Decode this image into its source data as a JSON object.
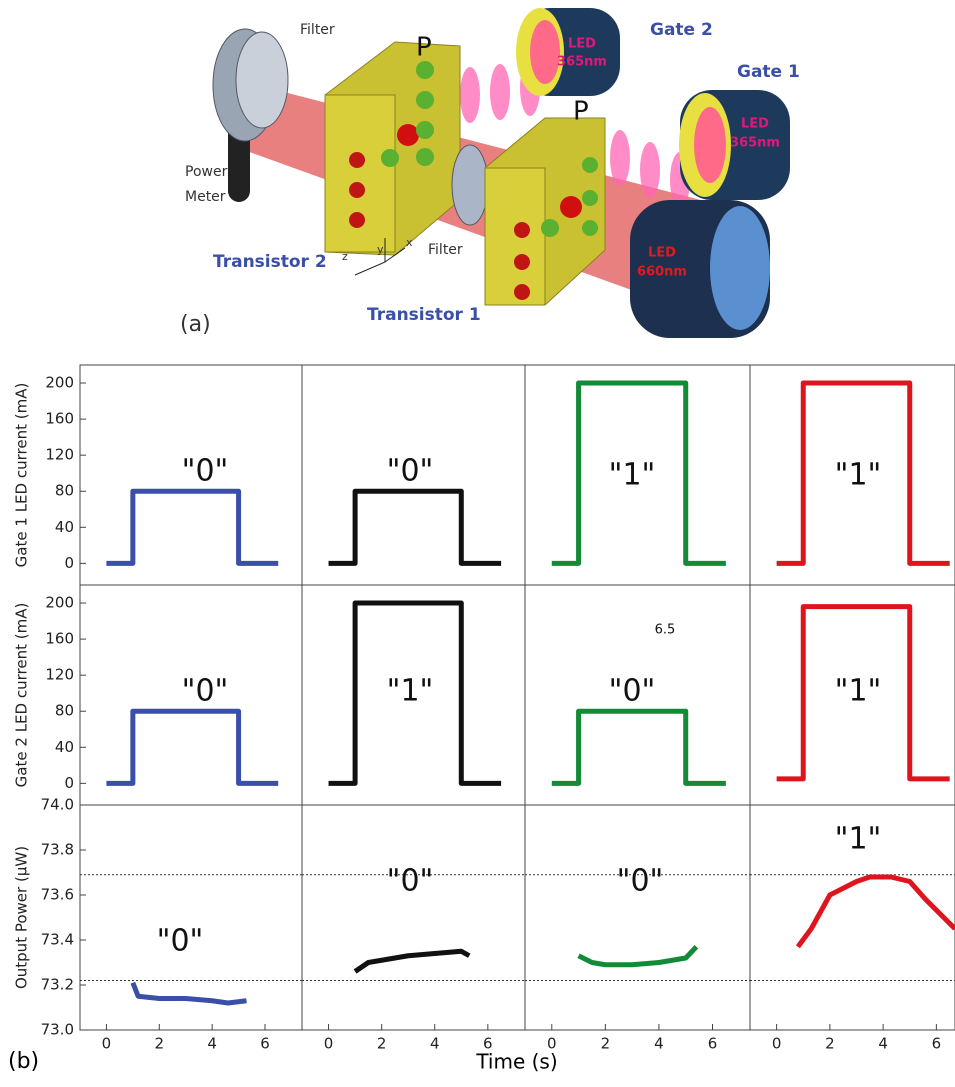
{
  "diagram": {
    "panel": "(a)",
    "filter_left": "Filter",
    "filter_right": "Filter",
    "power_meter_1": "Power",
    "power_meter_2": "Meter",
    "transistor_2": "Transistor 2",
    "transistor_1": "Transistor 1",
    "gate_1": "Gate 1",
    "gate_2": "Gate 2",
    "led_g2_1": "LED",
    "led_g2_2": "365nm",
    "led_g1_1": "LED",
    "led_g1_2": "365nm",
    "led_red_1": "LED",
    "led_red_2": "660nm",
    "polarization": "P",
    "axis_x": "x",
    "axis_y": "y",
    "axis_z": "z"
  },
  "figure": {
    "panel": "(b)",
    "xlabel": "Time (s)"
  },
  "chart_data": [
    {
      "type": "line",
      "ylabel": "Gate 1 LED current (mA)",
      "xlim": [
        -1,
        7.4
      ],
      "ylim": [
        -24,
        220
      ],
      "yticks": [
        0,
        40,
        80,
        120,
        160,
        200
      ],
      "x": [
        0,
        1,
        1,
        5,
        5,
        6.5
      ],
      "series": [
        {
          "color": "#3a4fa8",
          "values": [
            0,
            0,
            80,
            80,
            0,
            0
          ]
        }
      ],
      "annotations": [
        "\"0\""
      ]
    },
    {
      "type": "line",
      "xlim": [
        -1,
        7.4
      ],
      "ylim": [
        -24,
        220
      ],
      "x": [
        0,
        1,
        1,
        5,
        5,
        6.5
      ],
      "series": [
        {
          "color": "#111111",
          "values": [
            0,
            0,
            80,
            80,
            0,
            0
          ]
        }
      ],
      "annotations": [
        "\"0\""
      ]
    },
    {
      "type": "line",
      "xlim": [
        -1,
        7.4
      ],
      "ylim": [
        -24,
        220
      ],
      "x": [
        0,
        1,
        1,
        5,
        5,
        6.5
      ],
      "series": [
        {
          "color": "#138a36",
          "values": [
            0,
            0,
            200,
            200,
            0,
            0
          ]
        }
      ],
      "annotations": [
        "\"1\""
      ]
    },
    {
      "type": "line",
      "xlim": [
        -1,
        6.7
      ],
      "ylim": [
        -24,
        220
      ],
      "x": [
        0,
        1,
        1,
        5,
        5,
        6.5
      ],
      "series": [
        {
          "color": "#e0141c",
          "values": [
            0,
            0,
            200,
            200,
            0,
            0
          ]
        }
      ],
      "annotations": [
        "\"1\""
      ]
    },
    {
      "type": "line",
      "ylabel": "Gate 2 LED current (mA)",
      "xlim": [
        -1,
        7.4
      ],
      "ylim": [
        -24,
        220
      ],
      "yticks": [
        0,
        40,
        80,
        120,
        160,
        200
      ],
      "x": [
        0,
        1,
        1,
        5,
        5,
        6.5
      ],
      "series": [
        {
          "color": "#3a4fa8",
          "values": [
            0,
            0,
            80,
            80,
            0,
            0
          ]
        }
      ],
      "annotations": [
        "\"0\""
      ]
    },
    {
      "type": "line",
      "xlim": [
        -1,
        7.4
      ],
      "ylim": [
        -24,
        220
      ],
      "x": [
        0,
        1,
        1,
        5,
        5,
        6.5
      ],
      "series": [
        {
          "color": "#111111",
          "values": [
            0,
            0,
            200,
            200,
            0,
            0
          ]
        }
      ],
      "annotations": [
        "\"1\""
      ]
    },
    {
      "type": "line",
      "xlim": [
        -1,
        7.4
      ],
      "ylim": [
        -24,
        220
      ],
      "x": [
        0,
        1,
        1,
        5,
        5,
        6.5
      ],
      "series": [
        {
          "color": "#138a36",
          "values": [
            0,
            0,
            80,
            80,
            0,
            0
          ]
        }
      ],
      "annotations": [
        "\"0\"",
        "6.5"
      ]
    },
    {
      "type": "line",
      "xlim": [
        -1,
        6.7
      ],
      "ylim": [
        -24,
        220
      ],
      "x": [
        0,
        1,
        1,
        5,
        5,
        6.5
      ],
      "series": [
        {
          "color": "#e0141c",
          "values": [
            5,
            5,
            196,
            196,
            5,
            5
          ]
        }
      ],
      "annotations": [
        "\"1\""
      ]
    },
    {
      "type": "line",
      "ylabel": "Output Power (μW)",
      "xlim": [
        -1,
        7.4
      ],
      "ylim": [
        73.0,
        74.0
      ],
      "yticks": [
        {
          "value": 73.0,
          "label": "73.0"
        },
        73.2,
        73.4,
        73.6,
        73.8,
        {
          "value": 74.0,
          "label": "74.0"
        }
      ],
      "xticks": [
        0,
        2,
        4,
        6
      ],
      "reference_lines": [
        73.69,
        73.22
      ],
      "x": [
        1,
        1.2,
        2,
        3,
        4,
        4.6,
        5.3
      ],
      "series": [
        {
          "color": "#3a4fa8",
          "values": [
            73.21,
            73.15,
            73.14,
            73.14,
            73.13,
            73.12,
            73.13
          ]
        }
      ],
      "annotations": [
        "\"0\""
      ]
    },
    {
      "type": "line",
      "xlim": [
        -1,
        7.4
      ],
      "ylim": [
        73.0,
        74.0
      ],
      "xticks": [
        0,
        2,
        4,
        6
      ],
      "reference_lines": [
        73.69,
        73.22
      ],
      "x": [
        1,
        1.5,
        2,
        3,
        4,
        5,
        5.3
      ],
      "series": [
        {
          "color": "#111111",
          "values": [
            73.26,
            73.3,
            73.31,
            73.33,
            73.34,
            73.35,
            73.33
          ]
        }
      ],
      "annotations": [
        "\"0\""
      ]
    },
    {
      "type": "line",
      "xlim": [
        -1,
        7.4
      ],
      "ylim": [
        73.0,
        74.0
      ],
      "xticks": [
        0,
        2,
        4,
        6
      ],
      "reference_lines": [
        73.69,
        73.22
      ],
      "x": [
        1,
        1.5,
        2,
        3,
        4,
        5,
        5.4
      ],
      "series": [
        {
          "color": "#138a36",
          "values": [
            73.33,
            73.3,
            73.29,
            73.29,
            73.3,
            73.32,
            73.37
          ]
        }
      ],
      "annotations": [
        "\"0\""
      ]
    },
    {
      "type": "line",
      "xlim": [
        -1,
        6.7
      ],
      "ylim": [
        73.0,
        74.0
      ],
      "xticks": [
        0,
        2,
        4,
        6
      ],
      "reference_lines": [
        73.69,
        73.22
      ],
      "x": [
        0.8,
        1.3,
        2,
        3,
        3.5,
        4.3,
        5,
        5.6,
        6.7
      ],
      "series": [
        {
          "color": "#e0141c",
          "values": [
            73.37,
            73.45,
            73.6,
            73.66,
            73.68,
            73.68,
            73.66,
            73.58,
            73.45
          ]
        }
      ],
      "annotations": [
        "\"1\""
      ]
    }
  ]
}
